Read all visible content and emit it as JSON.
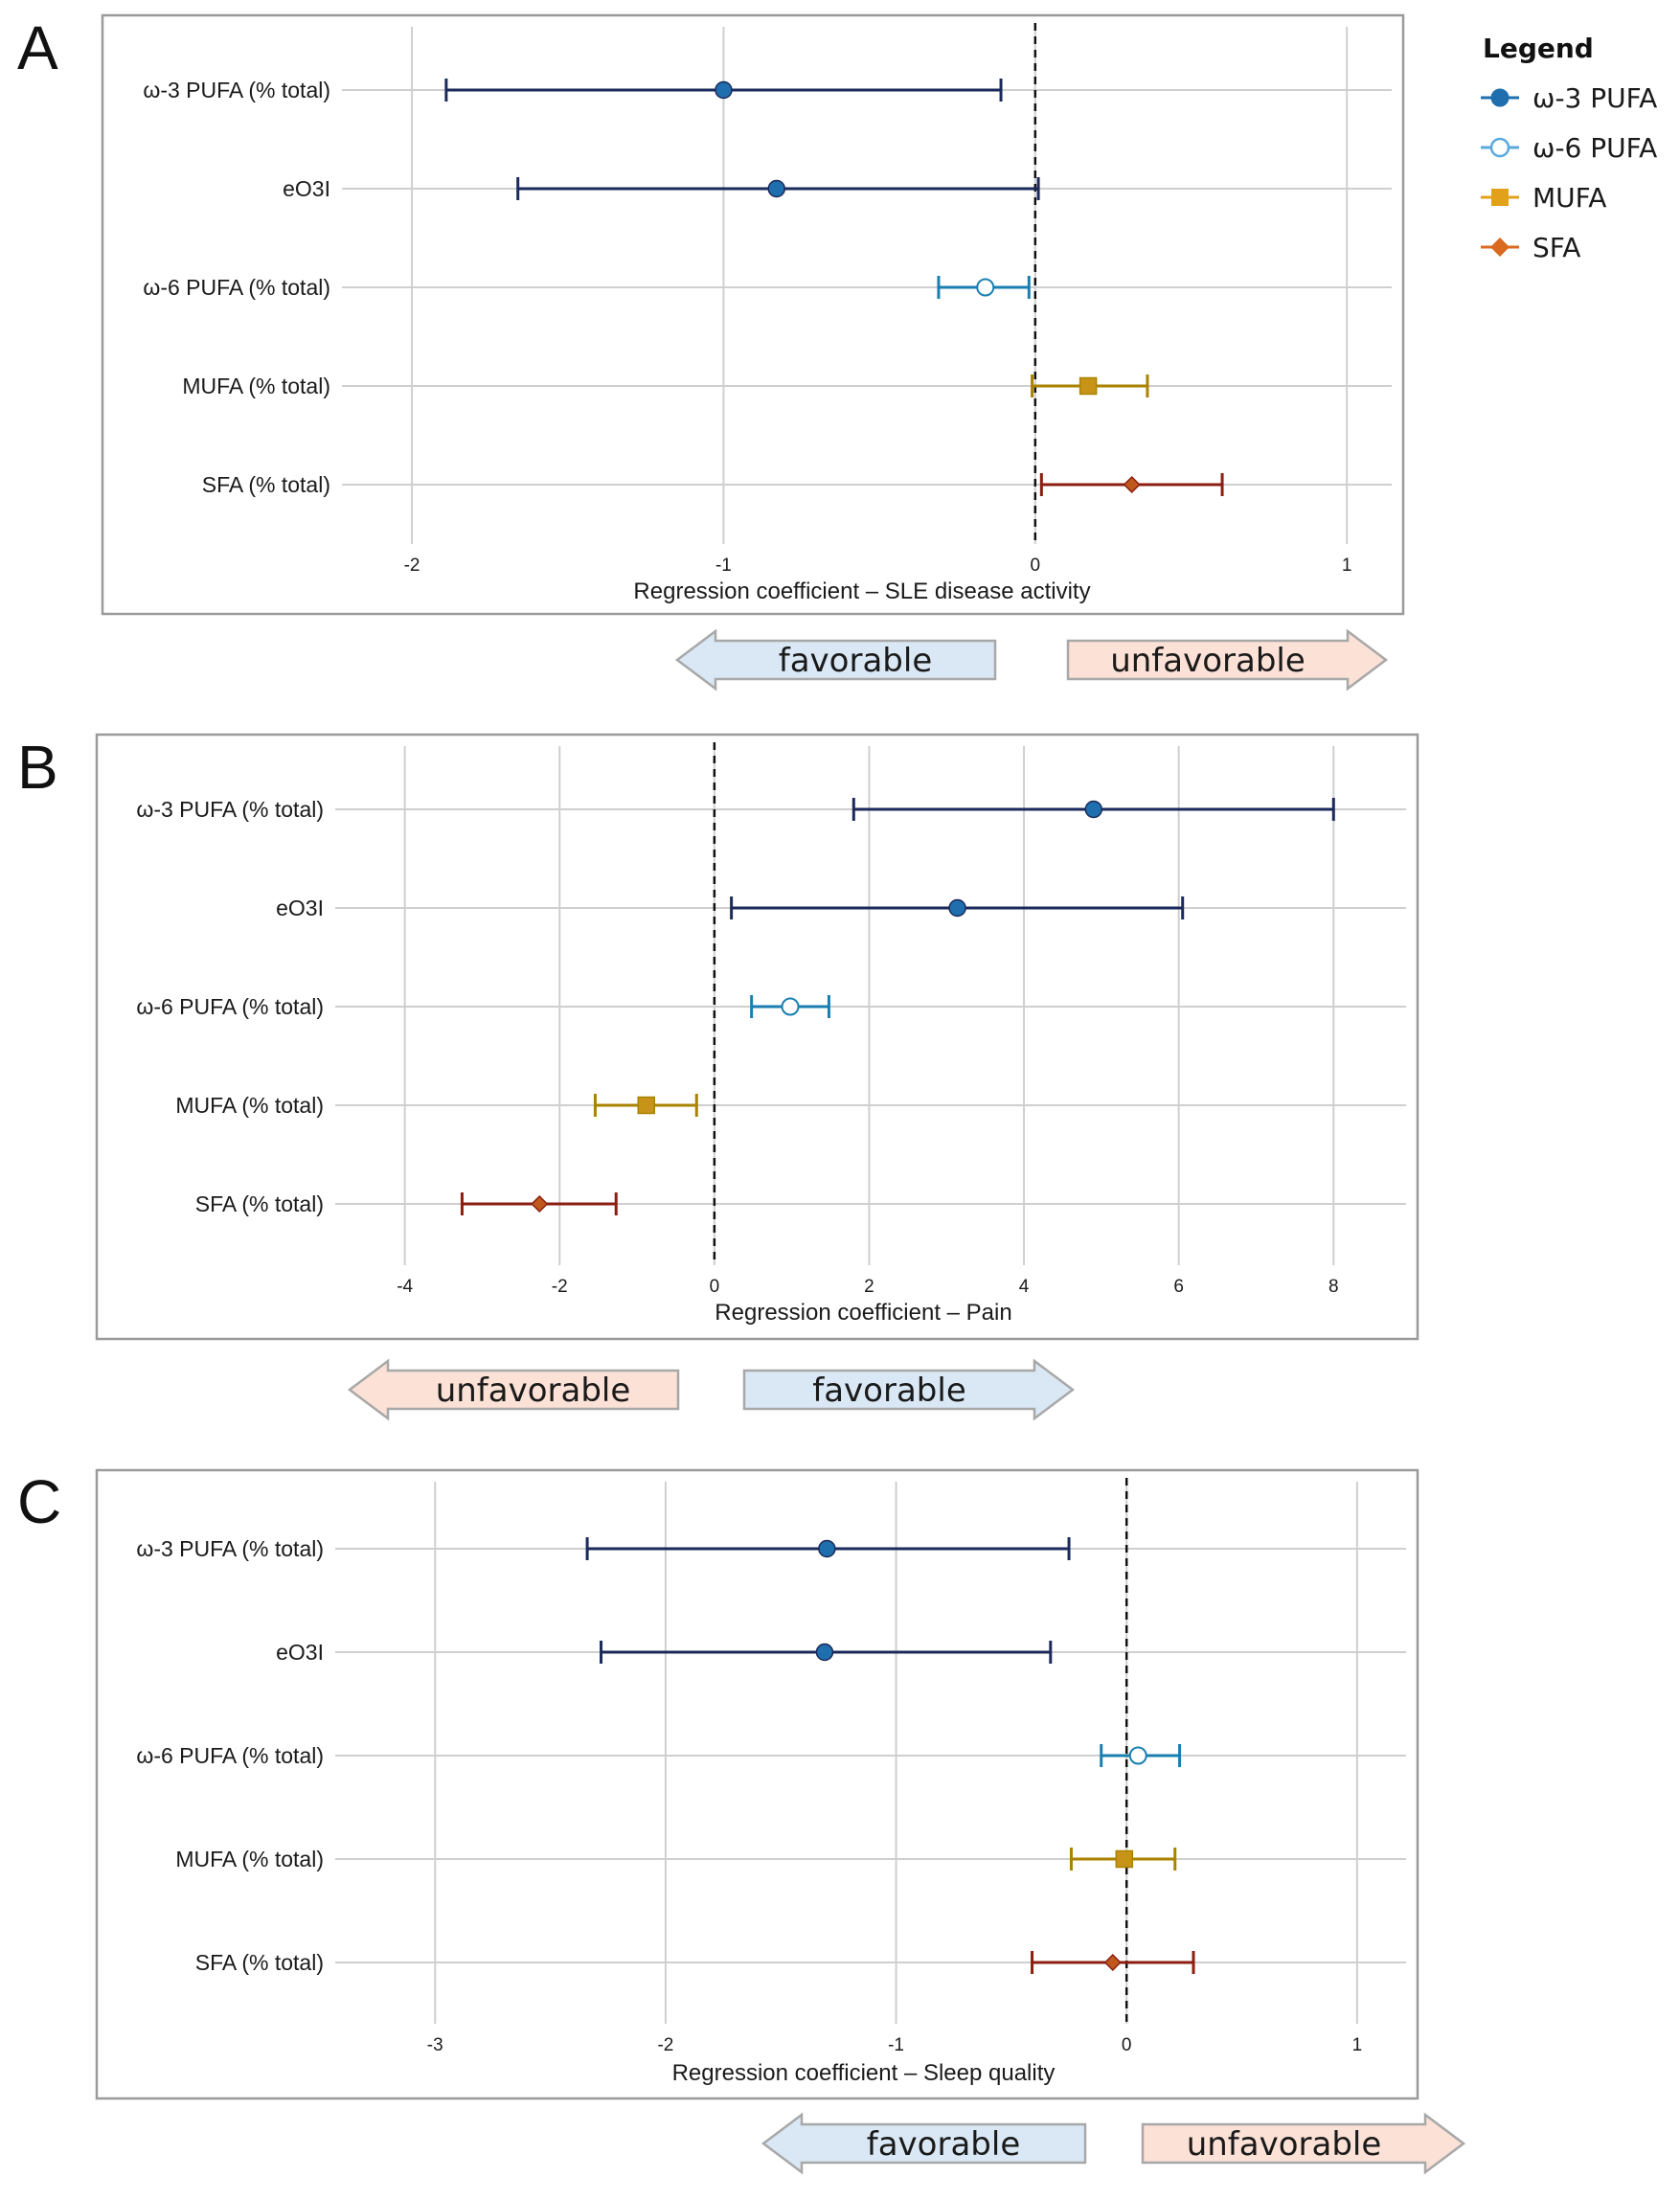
{
  "legend": {
    "title": "Legend",
    "entries": [
      {
        "label": "ω-3 PUFA",
        "color": "#1f6fae",
        "marker": "circle-filled"
      },
      {
        "label": "ω-6 PUFA",
        "color": "#5aa9dd",
        "marker": "circle-open"
      },
      {
        "label": "MUFA",
        "color": "#e3a11a",
        "marker": "square"
      },
      {
        "label": "SFA",
        "color": "#d96a1f",
        "marker": "diamond"
      }
    ]
  },
  "colors": {
    "omega3_bar": "#1b2a5a",
    "omega3_fill": "#1f6fae",
    "omega6_bar": "#1a7fb0",
    "mufa_bar": "#a98200",
    "mufa_fill": "#c79418",
    "sfa_bar": "#8b1e10",
    "sfa_fill": "#c0571d",
    "favorable": "#dae8f5",
    "unfavorable": "#fbe1d6"
  },
  "chart_data": [
    {
      "panel": "A",
      "type": "forest",
      "xlabel": "Regression coefficient – SLE disease activity",
      "xlim": [
        -2.2,
        1.15
      ],
      "xticks": [
        -2,
        -1,
        0,
        1
      ],
      "reference_line": 0,
      "rows": [
        {
          "label": "ω-3 PUFA (% total)",
          "group": "omega3",
          "estimate": -1.0,
          "lower": -1.89,
          "upper": -0.11
        },
        {
          "label": "eO3I",
          "group": "omega3",
          "estimate": -0.83,
          "lower": -1.66,
          "upper": 0.01
        },
        {
          "label": "ω-6 PUFA (% total)",
          "group": "omega6",
          "estimate": -0.16,
          "lower": -0.31,
          "upper": -0.02
        },
        {
          "label": "MUFA (% total)",
          "group": "mufa",
          "estimate": 0.17,
          "lower": -0.01,
          "upper": 0.36
        },
        {
          "label": "SFA (% total)",
          "group": "sfa",
          "estimate": 0.31,
          "lower": 0.02,
          "upper": 0.6
        }
      ],
      "arrows": [
        {
          "label": "favorable",
          "direction": "left"
        },
        {
          "label": "unfavorable",
          "direction": "right"
        }
      ]
    },
    {
      "panel": "B",
      "type": "forest",
      "xlabel": "Regression coefficient – Pain",
      "xlim": [
        -4.8,
        8.9
      ],
      "xticks": [
        -4,
        -2,
        0,
        2,
        4,
        6,
        8
      ],
      "reference_line": 0,
      "rows": [
        {
          "label": "ω-3 PUFA (% total)",
          "group": "omega3",
          "estimate": 4.9,
          "lower": 1.8,
          "upper": 8.0
        },
        {
          "label": "eO3I",
          "group": "omega3",
          "estimate": 3.14,
          "lower": 0.22,
          "upper": 6.05
        },
        {
          "label": "ω-6 PUFA (% total)",
          "group": "omega6",
          "estimate": 0.98,
          "lower": 0.48,
          "upper": 1.48
        },
        {
          "label": "MUFA (% total)",
          "group": "mufa",
          "estimate": -0.88,
          "lower": -1.54,
          "upper": -0.23
        },
        {
          "label": "SFA (% total)",
          "group": "sfa",
          "estimate": -2.26,
          "lower": -3.26,
          "upper": -1.27
        }
      ],
      "arrows": [
        {
          "label": "unfavorable",
          "direction": "left"
        },
        {
          "label": "favorable",
          "direction": "right"
        }
      ]
    },
    {
      "panel": "C",
      "type": "forest",
      "xlabel": "Regression coefficient – Sleep quality",
      "xlim": [
        -3.4,
        1.2
      ],
      "xticks": [
        -3,
        -2,
        -1,
        0,
        1
      ],
      "reference_line": 0,
      "rows": [
        {
          "label": "ω-3 PUFA (% total)",
          "group": "omega3",
          "estimate": -1.3,
          "lower": -2.34,
          "upper": -0.25
        },
        {
          "label": "eO3I",
          "group": "omega3",
          "estimate": -1.31,
          "lower": -2.28,
          "upper": -0.33
        },
        {
          "label": "ω-6 PUFA (% total)",
          "group": "omega6",
          "estimate": 0.05,
          "lower": -0.11,
          "upper": 0.23
        },
        {
          "label": "MUFA (% total)",
          "group": "mufa",
          "estimate": -0.01,
          "lower": -0.24,
          "upper": 0.21
        },
        {
          "label": "SFA (% total)",
          "group": "sfa",
          "estimate": -0.06,
          "lower": -0.41,
          "upper": 0.29
        }
      ],
      "arrows": [
        {
          "label": "favorable",
          "direction": "left"
        },
        {
          "label": "unfavorable",
          "direction": "right"
        }
      ]
    }
  ]
}
